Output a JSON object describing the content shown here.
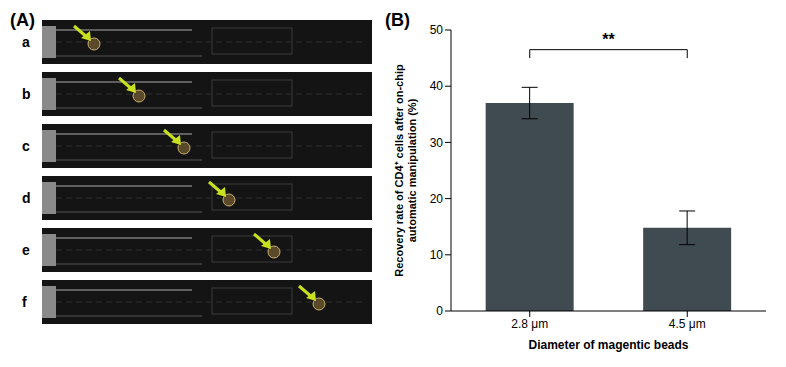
{
  "panel_a": {
    "label": "(A)",
    "rows": [
      "a",
      "b",
      "c",
      "d",
      "e",
      "f"
    ]
  },
  "chart_data": {
    "type": "bar",
    "panel_label": "(B)",
    "categories": [
      "2.8 μm",
      "4.5 μm"
    ],
    "values": [
      37,
      14.8
    ],
    "errors": [
      2.8,
      3.0
    ],
    "color": "#3f4b51",
    "xlabel": "Diameter of magentic beads",
    "ylabel": [
      "Recovery rate of CD4⁺ cells after on-chip",
      "automatic manipulation (%)"
    ],
    "ylim": [
      0,
      50
    ],
    "yticks": [
      0,
      10,
      20,
      30,
      40,
      50
    ],
    "annotation": "**",
    "grid": false
  }
}
